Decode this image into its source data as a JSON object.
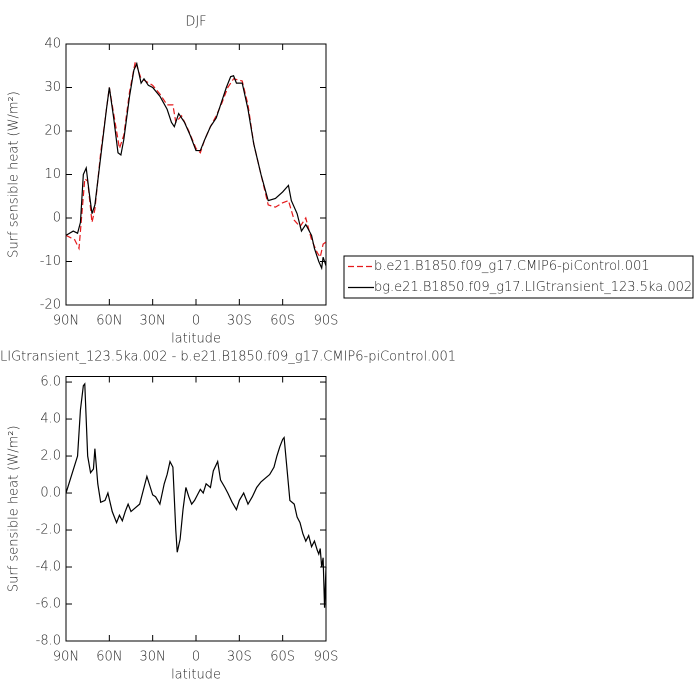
{
  "chart_data": [
    {
      "type": "line",
      "title": "DJF",
      "x_label": "latitude",
      "y_label": "Surf sensible heat (W/m²)",
      "xlim": [
        90,
        -90
      ],
      "xticks": [
        {
          "value": 90,
          "label": "90N"
        },
        {
          "value": 60,
          "label": "60N"
        },
        {
          "value": 30,
          "label": "30N"
        },
        0,
        {
          "value": -30,
          "label": "30S"
        },
        {
          "value": -60,
          "label": "60S"
        },
        {
          "value": -90,
          "label": "90S"
        }
      ],
      "ylim": [
        -20,
        40
      ],
      "yticks": [
        -20,
        -10,
        0,
        10,
        20,
        30,
        40
      ],
      "legend": "right",
      "series": [
        {
          "name": "b.e21.B1850.f09_g17.CMIP6-piControl.001",
          "color": "#e41a1c",
          "dashed": true,
          "x": [
            90,
            84,
            81,
            79,
            77,
            75,
            72,
            70,
            66,
            60,
            56,
            53,
            50,
            46,
            42,
            38,
            35,
            30,
            25,
            20,
            16,
            14,
            10,
            5,
            0,
            -3,
            -6,
            -10,
            -14,
            -18,
            -22,
            -26,
            -32,
            -36,
            -40,
            -45,
            -50,
            -55,
            -60,
            -64,
            -68,
            -72,
            -76,
            -80,
            -84,
            -86,
            -88,
            -90
          ],
          "values": [
            -4,
            -5,
            -7,
            1,
            9,
            8.5,
            -1,
            2,
            15,
            30,
            22,
            16,
            19,
            29,
            36,
            32,
            31.5,
            30.5,
            28.5,
            26,
            26,
            22,
            23.5,
            20,
            16,
            15,
            18,
            21,
            23.5,
            26.5,
            30,
            32,
            31.5,
            26,
            17,
            10,
            3,
            2.5,
            3.5,
            4,
            -0.5,
            -2,
            0,
            -5,
            -8,
            -9,
            -6,
            -5.5
          ]
        },
        {
          "name": "bg.e21.B1850.f09_g17.LIGtransient_123.5ka.002",
          "color": "#000000",
          "dashed": false,
          "x": [
            90,
            85,
            82,
            80,
            78,
            76,
            74,
            72,
            70,
            66,
            62,
            60,
            57,
            54,
            52,
            50,
            46,
            43,
            41,
            38,
            36,
            33,
            30,
            25,
            20,
            17,
            15,
            12,
            8,
            4,
            0,
            -3,
            -6,
            -10,
            -14,
            -18,
            -21,
            -24,
            -26,
            -28,
            -32,
            -36,
            -40,
            -45,
            -50,
            -55,
            -60,
            -64,
            -66,
            -70,
            -73,
            -76,
            -80,
            -82,
            -85,
            -87,
            -88,
            -90
          ],
          "values": [
            -4,
            -3,
            -3.5,
            -1,
            10,
            11.5,
            6,
            1,
            3,
            14,
            25,
            30,
            23,
            15,
            14.5,
            18,
            28,
            34,
            35.5,
            31,
            32,
            30.5,
            30,
            28,
            25,
            22,
            21,
            24,
            22,
            19,
            15.5,
            15.5,
            18,
            21,
            23,
            27,
            30,
            32.5,
            32.7,
            31,
            31,
            25,
            17,
            10,
            4,
            4.5,
            6,
            7.5,
            4,
            1,
            -3,
            -1.5,
            -4,
            -7,
            -10,
            -11.5,
            -9,
            -11
          ]
        }
      ]
    },
    {
      "type": "line",
      "title": "LIGtransient_123.5ka.002 - b.e21.B1850.f09_g17.CMIP6-piControl.001",
      "x_label": "latitude",
      "y_label": "Surf sensible heat (W/m²)",
      "xlim": [
        90,
        -90
      ],
      "xticks": [
        {
          "value": 90,
          "label": "90N"
        },
        {
          "value": 60,
          "label": "60N"
        },
        {
          "value": 30,
          "label": "30N"
        },
        0,
        {
          "value": -30,
          "label": "30S"
        },
        {
          "value": -60,
          "label": "60S"
        },
        {
          "value": -90,
          "label": "90S"
        }
      ],
      "ylim": [
        -8,
        6.3
      ],
      "yticks": [
        {
          "value": -8,
          "label": "-8.0"
        },
        {
          "value": -6,
          "label": "-6.0"
        },
        {
          "value": -4,
          "label": "-4.0"
        },
        {
          "value": -2,
          "label": "-2.0"
        },
        {
          "value": 0,
          "label": "0.0"
        },
        {
          "value": 2,
          "label": "2.0"
        },
        {
          "value": 4,
          "label": "4.0"
        },
        {
          "value": 6,
          "label": "6.0"
        }
      ],
      "series": [
        {
          "color": "#000000",
          "dashed": false,
          "x": [
            90,
            86,
            82,
            80,
            78,
            77,
            75,
            73,
            71,
            70,
            68,
            66,
            63,
            61,
            58,
            55,
            53,
            51,
            49,
            47,
            45,
            42,
            39,
            36,
            34,
            32,
            30,
            28,
            25,
            22,
            20,
            18,
            16,
            14,
            13,
            11,
            9,
            7,
            5,
            3,
            1,
            -1,
            -3,
            -5,
            -7,
            -10,
            -12,
            -15,
            -17,
            -20,
            -22,
            -25,
            -28,
            -30,
            -33,
            -36,
            -39,
            -42,
            -45,
            -48,
            -51,
            -54,
            -56,
            -58,
            -60,
            -61,
            -63,
            -65,
            -68,
            -70,
            -72,
            -74,
            -76,
            -78,
            -80,
            -82,
            -84,
            -85,
            -86,
            -87,
            -88,
            -89,
            -90
          ],
          "values": [
            0,
            1,
            2,
            4.5,
            5.8,
            5.9,
            2,
            1.1,
            1.3,
            2.4,
            0.5,
            -0.5,
            -0.4,
            0,
            -1,
            -1.6,
            -1.2,
            -1.5,
            -1,
            -0.6,
            -1,
            -0.8,
            -0.6,
            0.3,
            0.9,
            0.4,
            -0.1,
            -0.2,
            -0.6,
            0.5,
            1,
            1.7,
            1.4,
            -2,
            -3.2,
            -2.5,
            -0.9,
            0.3,
            -0.2,
            -0.6,
            -0.4,
            -0.1,
            0.2,
            0,
            0.5,
            0.3,
            1.2,
            1.7,
            0.7,
            0.3,
            0,
            -0.5,
            -0.9,
            -0.4,
            0,
            -0.6,
            -0.2,
            0.3,
            0.6,
            0.8,
            1,
            1.4,
            2,
            2.5,
            2.9,
            3,
            1.3,
            -0.4,
            -0.6,
            -1.3,
            -1.6,
            -2.2,
            -2.6,
            -2.3,
            -2.9,
            -2.6,
            -3.1,
            -3.3,
            -3,
            -4,
            -3.5,
            -6.2,
            -4
          ]
        }
      ]
    }
  ]
}
